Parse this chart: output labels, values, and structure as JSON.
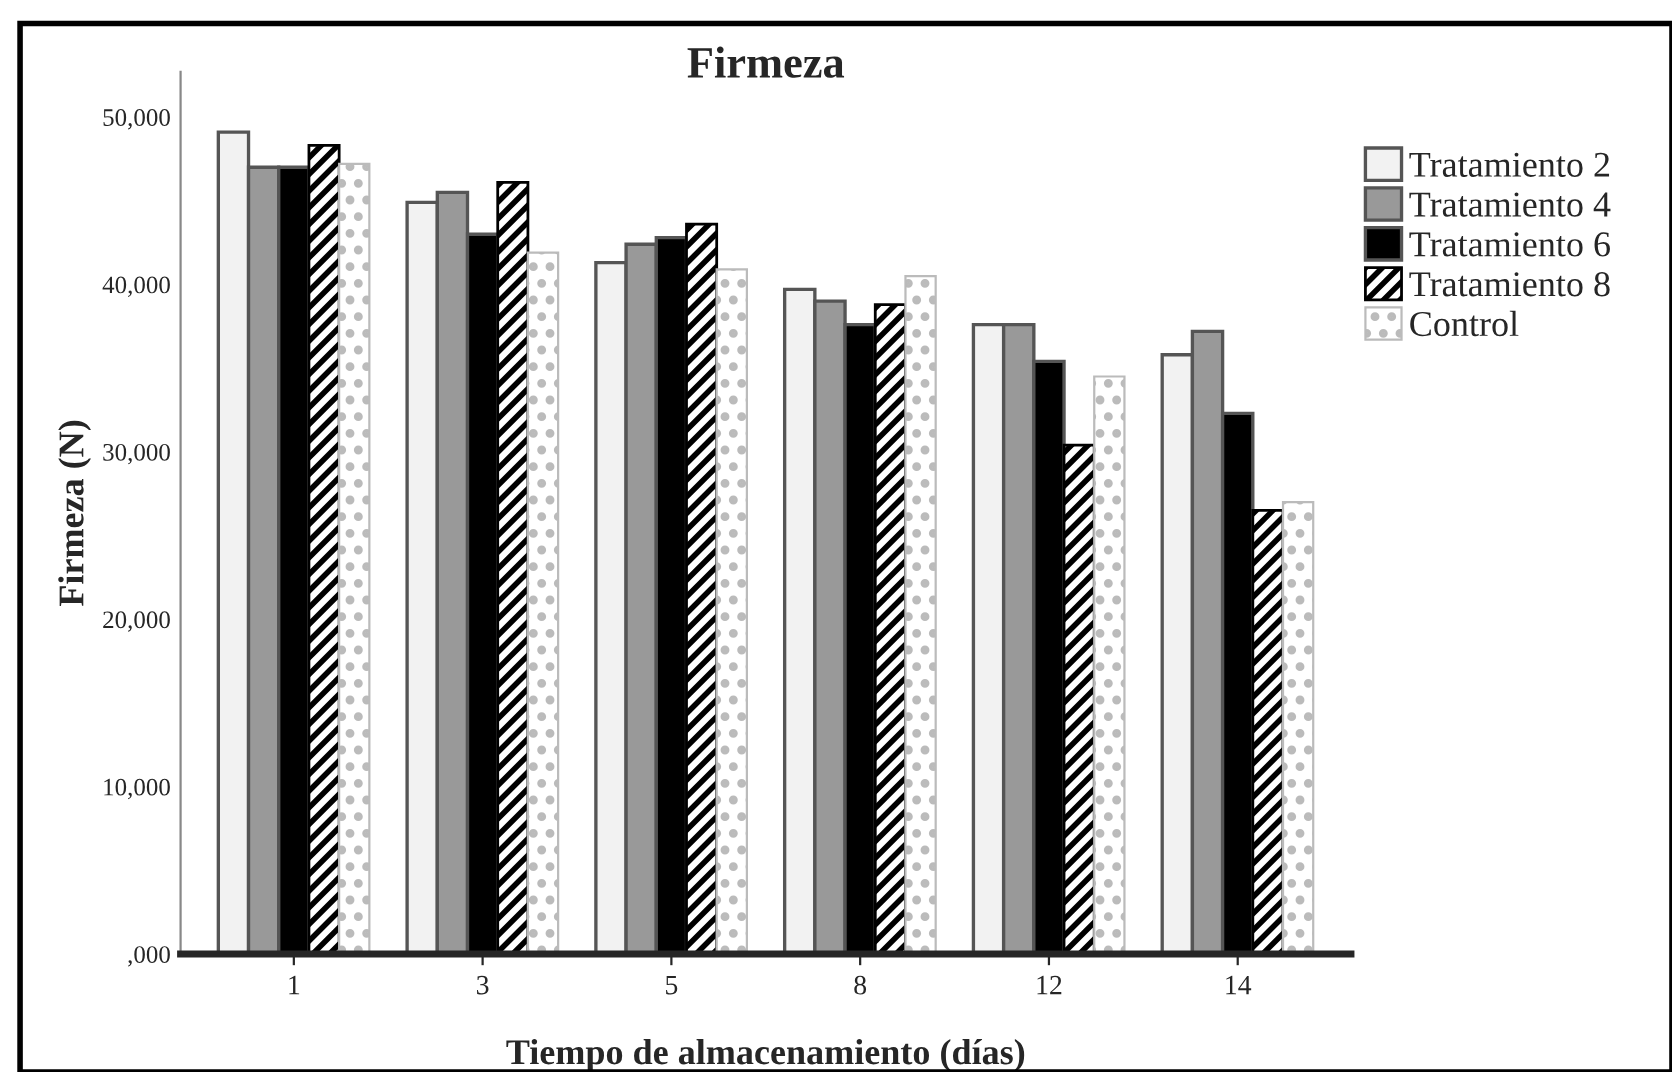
{
  "chart_data": {
    "type": "bar",
    "title": "Firmeza",
    "xlabel": "Tiempo de almacenamiento (días)",
    "ylabel": "Firmeza (N)",
    "categories": [
      "1",
      "3",
      "5",
      "8",
      "12",
      "14"
    ],
    "series": [
      {
        "name": "Tratamiento 2",
        "color": "#f2f2f2",
        "values": [
          49100,
          44900,
          41300,
          39700,
          37600,
          35800
        ]
      },
      {
        "name": "Tratamiento 4",
        "color": "#999999",
        "values": [
          47000,
          45500,
          42400,
          39000,
          37600,
          37200
        ]
      },
      {
        "name": "Tratamiento 6",
        "color": "#000000",
        "values": [
          47000,
          43000,
          42800,
          37600,
          35400,
          32300
        ]
      },
      {
        "name": "Tratamiento 8",
        "color": "#000000",
        "values": [
          48300,
          46100,
          43600,
          38800,
          30400,
          26500
        ]
      },
      {
        "name": "Control",
        "color": "#bbbbbb",
        "values": [
          47200,
          41900,
          40900,
          40500,
          34500,
          27000
        ]
      }
    ],
    "ylim": [
      0,
      52700
    ],
    "yticks": [
      {
        "value": 0,
        "label": ",000"
      },
      {
        "value": 10000,
        "label": "10,000"
      },
      {
        "value": 20000,
        "label": "20,000"
      },
      {
        "value": 30000,
        "label": "30,000"
      },
      {
        "value": 40000,
        "label": "40,000"
      },
      {
        "value": 50000,
        "label": "50,000"
      }
    ],
    "grid": false,
    "legend": "top right"
  }
}
